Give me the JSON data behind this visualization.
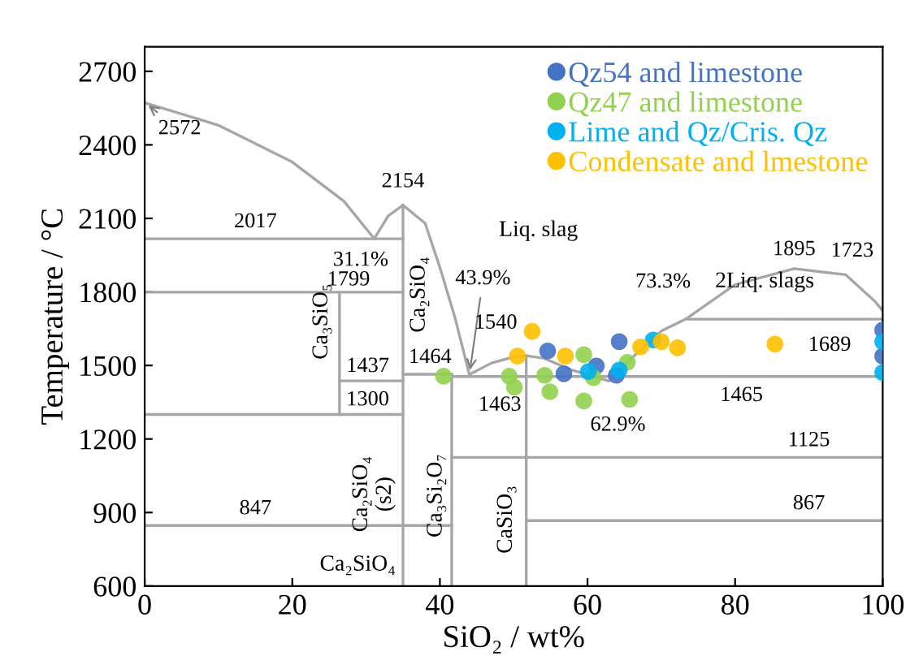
{
  "chart_data": {
    "type": "line",
    "xlabel": "SiO₂ / wt%",
    "ylabel": "Temperature / °C",
    "xlim": [
      0,
      100
    ],
    "ylim": [
      600,
      2800
    ],
    "xticks": [
      0,
      20,
      40,
      60,
      80,
      100
    ],
    "yticks": [
      600,
      900,
      1200,
      1500,
      1800,
      2100,
      2400,
      2700
    ],
    "grid": false,
    "legend": "top right",
    "series": [
      {
        "marker": "none",
        "color": "#a6a6a6",
        "x": [
          0,
          35
        ],
        "values": [
          2017,
          2017
        ]
      },
      {
        "marker": "none",
        "color": "#a6a6a6",
        "x": [
          0,
          35
        ],
        "values": [
          1799,
          1799
        ]
      },
      {
        "marker": "none",
        "color": "#a6a6a6",
        "x": [
          26.4,
          35
        ],
        "values": [
          1437,
          1437
        ]
      },
      {
        "marker": "none",
        "color": "#a6a6a6",
        "x": [
          0,
          35
        ],
        "values": [
          1300,
          1300
        ]
      },
      {
        "marker": "none",
        "color": "#a6a6a6",
        "x": [
          0,
          41.6
        ],
        "values": [
          847,
          847
        ]
      },
      {
        "marker": "none",
        "color": "#a6a6a6",
        "x": [
          35,
          41.6
        ],
        "values": [
          1464,
          1464
        ]
      },
      {
        "marker": "none",
        "color": "#a6a6a6",
        "x": [
          41.6,
          100
        ],
        "values": [
          1455,
          1455
        ]
      },
      {
        "marker": "none",
        "color": "#a6a6a6",
        "x": [
          41.6,
          100
        ],
        "values": [
          1125,
          1125
        ]
      },
      {
        "marker": "none",
        "color": "#a6a6a6",
        "x": [
          51.7,
          100
        ],
        "values": [
          867,
          867
        ]
      },
      {
        "marker": "none",
        "color": "#a6a6a6",
        "x": [
          73.3,
          100
        ],
        "values": [
          1689,
          1689
        ]
      },
      {
        "marker": "none",
        "color": "#a6a6a6",
        "x": [
          35,
          35
        ],
        "values": [
          600,
          2154
        ]
      },
      {
        "marker": "none",
        "color": "#a6a6a6",
        "x": [
          26.4,
          26.4
        ],
        "values": [
          1300,
          1799
        ]
      },
      {
        "marker": "none",
        "color": "#a6a6a6",
        "x": [
          41.6,
          41.6
        ],
        "values": [
          600,
          1464
        ]
      },
      {
        "marker": "none",
        "color": "#a6a6a6",
        "x": [
          51.7,
          51.7
        ],
        "values": [
          600,
          1540
        ]
      },
      {
        "marker": "none",
        "color": "#a6a6a6",
        "x": [
          0,
          10,
          20,
          27,
          31.1,
          33,
          35,
          38,
          40,
          42,
          44,
          47,
          50,
          51.7,
          54,
          58,
          62.9,
          66,
          70,
          73.3,
          80,
          88,
          95,
          99,
          100
        ],
        "values": [
          2572,
          2480,
          2330,
          2170,
          2017,
          2110,
          2154,
          2080,
          1900,
          1700,
          1463,
          1510,
          1535,
          1540,
          1530,
          1480,
          1436,
          1530,
          1640,
          1689,
          1830,
          1895,
          1870,
          1760,
          1723
        ]
      },
      {
        "type": "scatter",
        "marker": "circle",
        "name": "Qz54 and limestone",
        "color": "#4472c4",
        "x": [
          54.6,
          56.8,
          61.2,
          64.3,
          63.9,
          100,
          100
        ],
        "values": [
          1559,
          1466,
          1498,
          1597,
          1460,
          1644,
          1538
        ]
      },
      {
        "type": "scatter",
        "marker": "circle",
        "name": "Qz47 and limestone",
        "color": "#92d050",
        "x": [
          40.5,
          49.4,
          50.1,
          54.2,
          54.9,
          59.5,
          60.8,
          59.5,
          65.4,
          65.7
        ],
        "values": [
          1456,
          1456,
          1411,
          1460,
          1393,
          1544,
          1450,
          1355,
          1513,
          1361
        ]
      },
      {
        "type": "scatter",
        "marker": "circle",
        "name": "Lime and Qz/Cris. Qz",
        "color": "#00b0f0",
        "x": [
          60.1,
          64.3,
          68.9,
          100,
          100
        ],
        "values": [
          1475,
          1481,
          1604,
          1597,
          1471
        ]
      },
      {
        "type": "scatter",
        "marker": "circle",
        "name": "Condensate and lmestone",
        "color": "#ffc000",
        "x": [
          50.5,
          52.5,
          57.0,
          67.2,
          70.0,
          72.2,
          85.4
        ],
        "values": [
          1538,
          1639,
          1538,
          1576,
          1597,
          1572,
          1587
        ]
      }
    ],
    "annotations": [
      {
        "text": "2572",
        "x": 0,
        "y": 2572
      },
      {
        "text": "2017",
        "x": 15,
        "y": 2017
      },
      {
        "text": "31.1%",
        "x": 31.1,
        "y": 2017
      },
      {
        "text": "2154",
        "x": 35,
        "y": 2154
      },
      "Liq. slag",
      {
        "text": "1799",
        "x": 26.4,
        "y": 1799
      },
      "Ca₂SiO₄",
      "Ca₃SiO₅",
      {
        "text": "43.9%",
        "x": 44,
        "y": 1463
      },
      {
        "text": "1540",
        "x": 51.7,
        "y": 1540
      },
      {
        "text": "1437",
        "x": 26.4,
        "y": 1437
      },
      {
        "text": "1464",
        "x": 35,
        "y": 1464
      },
      {
        "text": "1300",
        "x": 26.4,
        "y": 1300
      },
      {
        "text": "1463",
        "x": 44,
        "y": 1463
      },
      "Ca₂SiO₄\n(s2)",
      "Ca₃Si₂O₇",
      "CaSiO₃",
      {
        "text": "847",
        "x": 15,
        "y": 847
      },
      "Ca₂SiO₄",
      {
        "text": "62.9%",
        "x": 62.9,
        "y": 1436
      },
      {
        "text": "1125",
        "x": 90,
        "y": 1125
      },
      {
        "text": "867",
        "x": 90,
        "y": 867
      },
      {
        "text": "73.3%",
        "x": 73.3,
        "y": 1689
      },
      {
        "text": "1895",
        "x": 88,
        "y": 1895
      },
      {
        "text": "1723",
        "x": 100,
        "y": 1723
      },
      "2Liq. slags",
      {
        "text": "1689",
        "x": 100,
        "y": 1689
      },
      {
        "text": "1465",
        "x": 85,
        "y": 1465
      }
    ]
  }
}
